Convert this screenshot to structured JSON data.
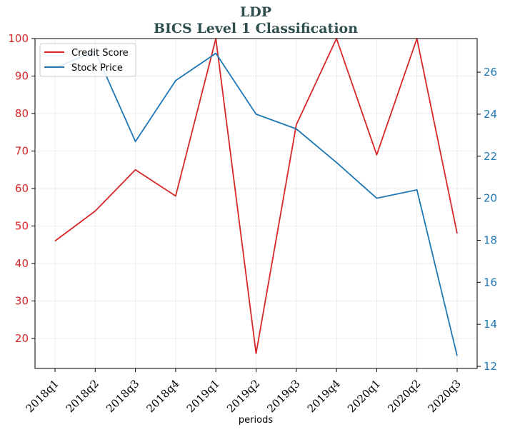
{
  "chart_data": {
    "type": "line",
    "title": "LDP",
    "subtitle": "BICS Level 1 Classification",
    "xlabel": "periods",
    "categories": [
      "2018q1",
      "2018q2",
      "2018q3",
      "2018q4",
      "2019q1",
      "2019q2",
      "2019q3",
      "2019q4",
      "2020q1",
      "2020q2",
      "2020q3"
    ],
    "series": [
      {
        "name": "Credit Score",
        "axis": "left",
        "color": "#d62728",
        "values": [
          46,
          54,
          65,
          58,
          100,
          16,
          77,
          100,
          69,
          100,
          48
        ]
      },
      {
        "name": "Stock Price",
        "axis": "right",
        "color": "#1f77b4",
        "values": [
          26.2,
          27.0,
          22.7,
          25.6,
          26.9,
          24.0,
          23.3,
          21.7,
          20.0,
          20.4,
          12.5
        ]
      }
    ],
    "y_left": {
      "ylim": [
        12,
        100
      ],
      "ticks": [
        20,
        30,
        40,
        50,
        60,
        70,
        80,
        90,
        100
      ],
      "color": "#d62728"
    },
    "y_right": {
      "ylim": [
        11.9,
        27.6
      ],
      "ticks": [
        12,
        14,
        16,
        18,
        20,
        22,
        24,
        26
      ],
      "color": "#1f77b4"
    },
    "grid": true,
    "legend": "top-left"
  }
}
